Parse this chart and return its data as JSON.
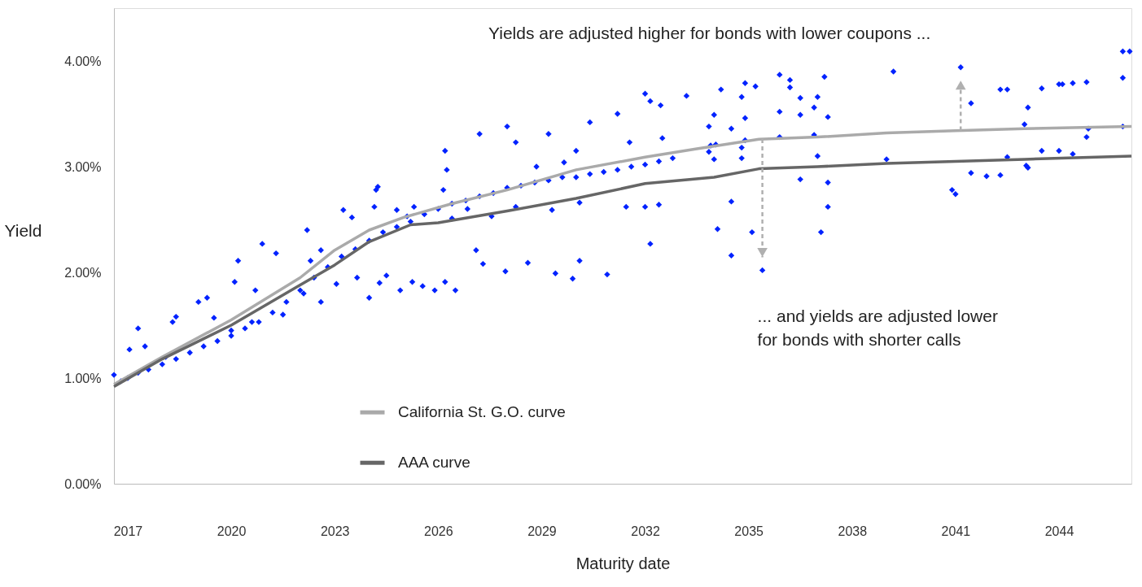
{
  "chart_data": {
    "type": "scatter",
    "xlabel": "Maturity date",
    "ylabel": "Yield",
    "legend": "bottom",
    "grid": false,
    "xlim": [
      2016.6,
      2046.1
    ],
    "ylim": [
      0,
      4.5
    ],
    "xticks": [
      2017,
      2020,
      2023,
      2026,
      2029,
      2032,
      2035,
      2038,
      2041,
      2044
    ],
    "yticks": [
      {
        "value": 0,
        "label": "0.00%"
      },
      {
        "value": 1,
        "label": "1.00%"
      },
      {
        "value": 2,
        "label": "2.00%"
      },
      {
        "value": 3,
        "label": "3.00%"
      },
      {
        "value": 4,
        "label": "4.00%"
      }
    ],
    "annotations": [
      {
        "text": "Yields are adjusted higher for bonds with lower coupons ...",
        "x": 2041.15,
        "y": 3.94
      },
      {
        "text": "... and yields are adjusted lower\nfor bonds with shorter calls",
        "x": 2035.4,
        "y": 2.02
      }
    ],
    "series": [
      {
        "marker": "diamond",
        "color": "#0022ff",
        "x": [
          2016.6,
          2016.8,
          2017.0,
          2017.3,
          2017.6,
          2018.0,
          2018.4,
          2018.8,
          2019.2,
          2019.6,
          2020.0,
          2020.4,
          2020.8,
          2021.2,
          2021.6,
          2022.0,
          2022.4,
          2022.8,
          2023.2,
          2023.6,
          2024.0,
          2024.4,
          2024.8,
          2025.2,
          2025.6,
          2026.0,
          2026.4,
          2026.8,
          2027.2,
          2027.6,
          2028.0,
          2028.4,
          2028.8,
          2029.2,
          2029.6,
          2030.0,
          2030.4,
          2030.8,
          2031.2,
          2031.6,
          2032.0,
          2032.4,
          2032.8,
          2017.3,
          2017.5,
          2017.05,
          2018.3,
          2018.4,
          2019.05,
          2019.3,
          2019.5,
          2020.1,
          2020.2,
          2020.7,
          2021.3,
          2020.9,
          2022.2,
          2022.3,
          2022.6,
          2023.25,
          2023.5,
          2024.2,
          2024.25,
          2024.15,
          2024.8,
          2025.1,
          2025.3,
          2026.2,
          2026.25,
          2026.15,
          2027.2,
          2028.0,
          2028.25,
          2029.2,
          2030.0,
          2030.4,
          2031.2,
          2032.0,
          2032.15,
          2032.45,
          2033.2,
          2032.5,
          2031.55,
          2029.65,
          2028.85,
          2018.1,
          2020.0,
          2020.6,
          2021.5,
          2022.1,
          2022.6,
          2023.05,
          2023.65,
          2024.0,
          2024.3,
          2024.5,
          2024.9,
          2025.25,
          2025.55,
          2025.9,
          2026.2,
          2026.5,
          2027.1,
          2027.3,
          2027.95,
          2028.6,
          2029.4,
          2029.9,
          2030.1,
          2030.9,
          2032.15,
          2026.4,
          2026.85,
          2027.55,
          2028.25,
          2029.3,
          2030.1,
          2031.45,
          2032.4,
          2032.0,
          2034.2,
          2034.9,
          2035.2,
          2035.9,
          2036.2,
          2036.2,
          2036.5,
          2037.0,
          2037.2,
          2034.8,
          2034.0,
          2034.9,
          2035.9,
          2036.5,
          2036.9,
          2037.3,
          2033.85,
          2034.5,
          2033.9,
          2034.05,
          2034.9,
          2034.8,
          2035.9,
          2036.9,
          2033.85,
          2034.0,
          2034.8,
          2037.0,
          2039.0,
          2036.5,
          2037.3,
          2034.5,
          2037.3,
          2034.1,
          2035.1,
          2037.1,
          2034.5,
          2035.4,
          2039.2,
          2041.15,
          2041.45,
          2042.3,
          2042.5,
          2043.1,
          2043.5,
          2044.0,
          2044.1,
          2044.4,
          2044.8,
          2045.85,
          2046.05,
          2045.85,
          2043.0,
          2044.85,
          2045.85,
          2044.8,
          2043.5,
          2044.0,
          2044.4,
          2042.5,
          2043.05,
          2043.1,
          2041.45,
          2041.9,
          2042.3,
          2040.9,
          2041.0
        ],
        "values": [
          1.03,
          0.97,
          1.0,
          1.05,
          1.08,
          1.13,
          1.18,
          1.24,
          1.3,
          1.35,
          1.4,
          1.47,
          1.53,
          1.62,
          1.72,
          1.83,
          1.95,
          2.05,
          2.15,
          2.22,
          2.3,
          2.38,
          2.43,
          2.48,
          2.55,
          2.6,
          2.65,
          2.68,
          2.72,
          2.75,
          2.8,
          2.82,
          2.85,
          2.87,
          2.9,
          2.9,
          2.93,
          2.95,
          2.97,
          3.0,
          3.02,
          3.05,
          3.08,
          1.47,
          1.3,
          1.27,
          1.53,
          1.58,
          1.72,
          1.76,
          1.57,
          1.91,
          2.11,
          1.83,
          2.18,
          2.27,
          2.4,
          2.11,
          2.21,
          2.59,
          2.52,
          2.78,
          2.81,
          2.62,
          2.59,
          2.53,
          2.62,
          3.15,
          2.97,
          2.78,
          3.31,
          3.38,
          3.23,
          3.31,
          3.15,
          3.42,
          3.5,
          3.69,
          3.62,
          3.58,
          3.67,
          3.27,
          3.23,
          3.04,
          3.0,
          1.2,
          1.45,
          1.53,
          1.6,
          1.8,
          1.72,
          1.89,
          1.95,
          1.76,
          1.9,
          1.97,
          1.83,
          1.91,
          1.87,
          1.83,
          1.91,
          1.83,
          2.21,
          2.08,
          2.01,
          2.09,
          1.99,
          1.94,
          2.11,
          1.98,
          2.27,
          2.51,
          2.6,
          2.53,
          2.62,
          2.59,
          2.66,
          2.62,
          2.64,
          2.62,
          3.73,
          3.79,
          3.76,
          3.87,
          3.82,
          3.75,
          3.65,
          3.66,
          3.85,
          3.66,
          3.49,
          3.46,
          3.52,
          3.49,
          3.56,
          3.47,
          3.38,
          3.36,
          3.2,
          3.21,
          3.25,
          3.18,
          3.28,
          3.3,
          3.14,
          3.07,
          3.08,
          3.1,
          3.07,
          2.88,
          2.85,
          2.67,
          2.62,
          2.41,
          2.38,
          2.38,
          2.16,
          2.02,
          3.9,
          3.94,
          3.6,
          3.73,
          3.73,
          3.56,
          3.74,
          3.78,
          3.78,
          3.79,
          3.8,
          4.09,
          4.09,
          3.84,
          3.4,
          3.36,
          3.38,
          3.28,
          3.15,
          3.15,
          3.12,
          3.09,
          3.01,
          2.99,
          2.94,
          2.91,
          2.92,
          2.78,
          2.74
        ]
      },
      {
        "type": "line",
        "name": "California St. G.O. curve",
        "color": "#aaaaaa",
        "x": [
          2016.6,
          2018,
          2020,
          2022,
          2023,
          2024,
          2025,
          2026.4,
          2028,
          2030,
          2032,
          2033.5,
          2035.3,
          2037,
          2039,
          2041,
          2043,
          2046.1
        ],
        "values": [
          0.94,
          1.2,
          1.55,
          1.95,
          2.21,
          2.4,
          2.52,
          2.65,
          2.78,
          2.97,
          3.09,
          3.17,
          3.26,
          3.28,
          3.32,
          3.34,
          3.36,
          3.38
        ]
      },
      {
        "type": "line",
        "name": "AAA curve",
        "color": "#666666",
        "x": [
          2016.6,
          2018,
          2020,
          2022,
          2023,
          2024,
          2025.2,
          2026,
          2028,
          2030,
          2032,
          2034,
          2035.3,
          2037,
          2039,
          2041,
          2043,
          2046.1
        ],
        "values": [
          0.92,
          1.18,
          1.5,
          1.88,
          2.07,
          2.29,
          2.45,
          2.47,
          2.58,
          2.7,
          2.84,
          2.9,
          2.98,
          3.0,
          3.03,
          3.05,
          3.07,
          3.1
        ]
      }
    ]
  }
}
